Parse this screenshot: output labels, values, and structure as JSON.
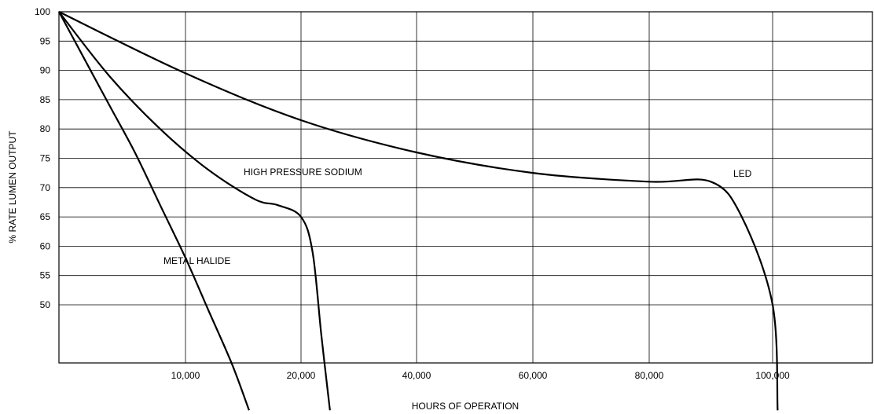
{
  "chart_data": {
    "type": "line",
    "xlabel": "HOURS OF OPERATION",
    "ylabel": "% RATE LUMEN OUTPUT",
    "x_ticks": [
      "10,000",
      "20,000",
      "40,000",
      "60,000",
      "80,000",
      "100,000"
    ],
    "y_ticks": [
      "100",
      "95",
      "90",
      "85",
      "80",
      "75",
      "70",
      "65",
      "60",
      "55",
      "50"
    ],
    "grid": true,
    "series": [
      {
        "name": "METAL HALIDE",
        "points": [
          [
            "0",
            100
          ],
          [
            "2,000",
            92
          ],
          [
            "4,000",
            84
          ],
          [
            "6,000",
            76
          ],
          [
            "8,000",
            67
          ],
          [
            "10,000",
            58
          ],
          [
            "12,000",
            49
          ],
          [
            "14,000",
            40
          ],
          [
            "15,500",
            32
          ]
        ]
      },
      {
        "name": "HIGH PRESSURE SODIUM",
        "points": [
          [
            "0",
            100
          ],
          [
            "4,000",
            89
          ],
          [
            "8,000",
            80
          ],
          [
            "12,000",
            73
          ],
          [
            "16,000",
            68
          ],
          [
            "18,000",
            67
          ],
          [
            "20,000",
            65
          ],
          [
            "22,000",
            59
          ],
          [
            "23,500",
            45
          ],
          [
            "25,000",
            32
          ]
        ]
      },
      {
        "name": "LED",
        "points": [
          [
            "0",
            100
          ],
          [
            "10,000",
            89.5
          ],
          [
            "20,000",
            81.5
          ],
          [
            "40,000",
            76
          ],
          [
            "60,000",
            72.5
          ],
          [
            "80,000",
            71
          ],
          [
            "90,000",
            71
          ],
          [
            "95,000",
            65
          ],
          [
            "100,000",
            50
          ],
          [
            "101,000",
            32
          ]
        ]
      }
    ]
  }
}
